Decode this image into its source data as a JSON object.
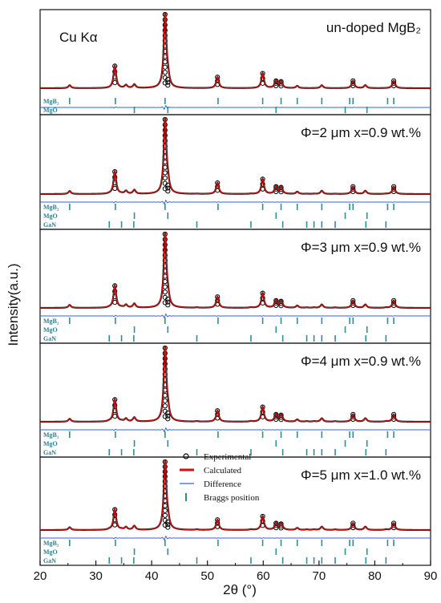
{
  "chart_data": {
    "type": "line",
    "xlabel": "2θ (°)",
    "ylabel": "Intensity(a.u.)",
    "xlim": [
      20,
      90
    ],
    "xticks": [
      "20",
      "30",
      "40",
      "50",
      "60",
      "70",
      "80",
      "90"
    ],
    "annotation": "Cu Kα",
    "legend": {
      "placement": "inside-bottom-panel",
      "items": [
        {
          "label": "Experimental",
          "kind": "circle",
          "color": "#000000"
        },
        {
          "label": "Calculated",
          "kind": "line",
          "color": "#cc1111"
        },
        {
          "label": "Difference",
          "kind": "line",
          "color": "#3366dd"
        },
        {
          "label": "Braggs position",
          "kind": "bar",
          "color": "#2f8f8f"
        }
      ]
    },
    "bragg_positions": {
      "MgB2": [
        25.3,
        33.5,
        42.4,
        51.9,
        59.9,
        63.2,
        66.1,
        70.5,
        75.5,
        76.1,
        82.3,
        83.4
      ],
      "MgO": [
        36.9,
        42.9,
        62.3,
        74.7,
        78.6
      ],
      "GaN": [
        32.4,
        34.6,
        36.8,
        48.1,
        57.8,
        63.5,
        67.8,
        69.1,
        70.5,
        72.9,
        78.4,
        82.0
      ]
    },
    "peaks": [
      {
        "x": 25.3,
        "rel": 0.04
      },
      {
        "x": 33.4,
        "rel": 0.3
      },
      {
        "x": 35.4,
        "rel": 0.04
      },
      {
        "x": 36.9,
        "rel": 0.05
      },
      {
        "x": 42.4,
        "rel": 1.0
      },
      {
        "x": 42.9,
        "rel": 0.12
      },
      {
        "x": 51.8,
        "rel": 0.15
      },
      {
        "x": 59.9,
        "rel": 0.2
      },
      {
        "x": 62.3,
        "rel": 0.1
      },
      {
        "x": 63.2,
        "rel": 0.09
      },
      {
        "x": 66.1,
        "rel": 0.03
      },
      {
        "x": 70.5,
        "rel": 0.04
      },
      {
        "x": 76.1,
        "rel": 0.1
      },
      {
        "x": 78.3,
        "rel": 0.04
      },
      {
        "x": 83.4,
        "rel": 0.1
      }
    ],
    "panels": [
      {
        "label": "un-doped MgB₂",
        "phases": [
          "MgB2",
          "MgO"
        ],
        "gan_scale": 0.0
      },
      {
        "label": "Φ=2 μm  x=0.9 wt.%",
        "phases": [
          "MgB2",
          "MgO",
          "GaN"
        ],
        "gan_scale": 0.3
      },
      {
        "label": "Φ=3 μm  x=0.9 wt.%",
        "phases": [
          "MgB2",
          "MgO",
          "GaN"
        ],
        "gan_scale": 0.5
      },
      {
        "label": "Φ=4 μm  x=0.9 wt.%",
        "phases": [
          "MgB2",
          "MgO",
          "GaN"
        ],
        "gan_scale": 0.6
      },
      {
        "label": "Φ=5 μm  x=1.0 wt.%",
        "phases": [
          "MgB2",
          "MgO",
          "GaN"
        ],
        "gan_scale": 0.7
      }
    ]
  },
  "phase_labels": {
    "MgB2": "MgB₂",
    "MgO": "MgO",
    "GaN": "GaN"
  },
  "colors": {
    "experimental": "#000000",
    "calculated": "#cc1111",
    "difference": "#3366dd",
    "bragg": "#2f8f8f"
  }
}
